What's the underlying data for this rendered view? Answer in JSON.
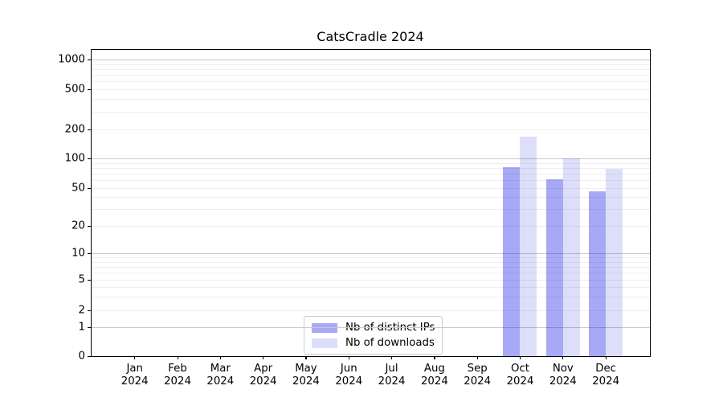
{
  "title": "CatsCradle 2024",
  "chart_data": {
    "type": "bar",
    "title": "CatsCradle 2024",
    "y_scale": "symlog",
    "ylim": [
      0,
      1300
    ],
    "xlabel": "",
    "ylabel": "",
    "grid": "horizontal major+minor",
    "grid_major_color": "#c9c9c9",
    "grid_minor_color": "#efefef",
    "background_color": "#ffffff",
    "months": [
      "Jan",
      "Feb",
      "Mar",
      "Apr",
      "May",
      "Jun",
      "Jul",
      "Aug",
      "Sep",
      "Oct",
      "Nov",
      "Dec"
    ],
    "year_label": "2024",
    "y_ticks": [
      0,
      1,
      2,
      5,
      10,
      20,
      50,
      100,
      200,
      500,
      1000
    ],
    "series": [
      {
        "name": "Nb of distinct IPs",
        "color": "rgba(5,10,230,0.35)",
        "values": [
          null,
          null,
          null,
          null,
          null,
          null,
          null,
          null,
          null,
          82,
          62,
          46
        ]
      },
      {
        "name": "Nb of downloads",
        "color": "rgba(5,19,219,0.14)",
        "values": [
          null,
          null,
          null,
          null,
          null,
          null,
          null,
          null,
          null,
          168,
          100,
          79
        ]
      }
    ],
    "legend_position": "lower center inside"
  }
}
